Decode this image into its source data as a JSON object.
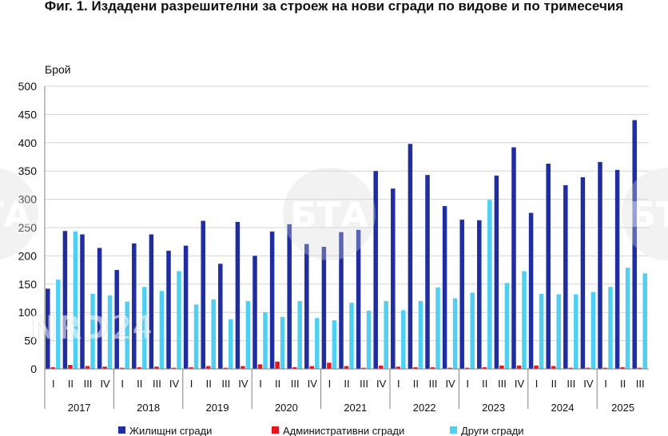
{
  "chart_data": {
    "type": "bar",
    "title": "Фиг. 1. Издадени разрешителни за строеж на нови сгради по видове и по тримесечия",
    "ylabel": "Брой",
    "ylim": [
      0,
      500
    ],
    "yticks": [
      0,
      50,
      100,
      150,
      200,
      250,
      300,
      350,
      400,
      450,
      500
    ],
    "grid": true,
    "legend_position": "bottom",
    "quarters": [
      "I",
      "II",
      "III",
      "IV",
      "I",
      "II",
      "III",
      "IV",
      "I",
      "II",
      "III",
      "IV",
      "I",
      "II",
      "III",
      "IV",
      "I",
      "II",
      "III",
      "IV",
      "I",
      "II",
      "III",
      "IV",
      "I",
      "II",
      "III",
      "IV",
      "I",
      "II",
      "III",
      "IV",
      "I",
      "II",
      "III"
    ],
    "years": [
      {
        "label": "2017",
        "start": 0,
        "count": 4
      },
      {
        "label": "2018",
        "start": 4,
        "count": 4
      },
      {
        "label": "2019",
        "start": 8,
        "count": 4
      },
      {
        "label": "2020",
        "start": 12,
        "count": 4
      },
      {
        "label": "2021",
        "start": 16,
        "count": 4
      },
      {
        "label": "2022",
        "start": 20,
        "count": 4
      },
      {
        "label": "2023",
        "start": 24,
        "count": 4
      },
      {
        "label": "2024",
        "start": 28,
        "count": 4
      },
      {
        "label": "2025",
        "start": 32,
        "count": 3
      }
    ],
    "series": [
      {
        "name": "Жилищни сгради",
        "color": "#1f2d9e",
        "values": [
          142,
          244,
          238,
          214,
          175,
          222,
          238,
          209,
          218,
          262,
          186,
          260,
          200,
          243,
          256,
          221,
          216,
          242,
          246,
          350,
          319,
          398,
          343,
          288,
          264,
          263,
          342,
          392,
          276,
          363,
          325,
          339,
          366,
          352,
          440
        ]
      },
      {
        "name": "Административни сгради",
        "color": "#e3151f",
        "values": [
          3,
          7,
          5,
          4,
          2,
          3,
          4,
          2,
          3,
          5,
          2,
          5,
          8,
          13,
          3,
          5,
          11,
          5,
          2,
          6,
          4,
          3,
          3,
          2,
          2,
          3,
          6,
          6,
          6,
          5,
          2,
          2,
          2,
          3,
          2
        ]
      },
      {
        "name": "Други сгради",
        "color": "#4fd0f2",
        "values": [
          158,
          243,
          133,
          130,
          119,
          145,
          138,
          173,
          114,
          123,
          88,
          120,
          100,
          92,
          120,
          90,
          86,
          117,
          103,
          120,
          104,
          120,
          144,
          125,
          135,
          299,
          152,
          173,
          133,
          132,
          132,
          136,
          145,
          179,
          169
        ]
      }
    ]
  },
  "watermarks": {
    "bta": "БТА",
    "nrd": "NRD",
    "nrd_num": "24"
  }
}
